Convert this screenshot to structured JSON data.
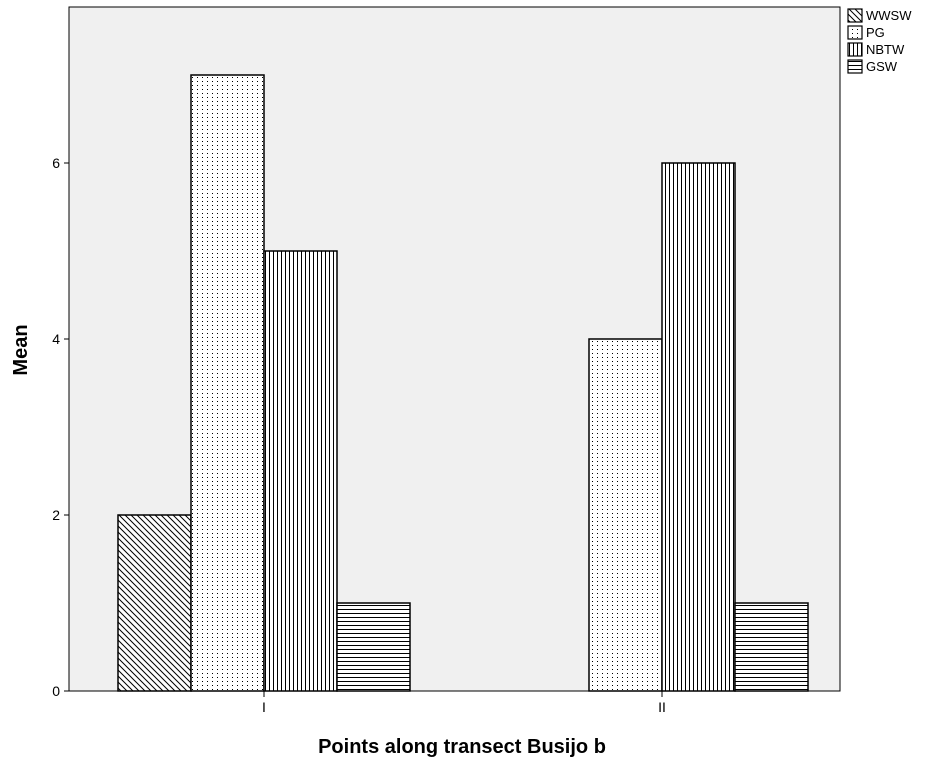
{
  "chart_data": {
    "type": "bar",
    "title": "",
    "xlabel": "Points along transect Busijo b",
    "ylabel": "Mean",
    "categories": [
      "I",
      "II"
    ],
    "series": [
      {
        "name": "WWSW",
        "values": [
          2,
          null
        ],
        "pattern": "diagonal"
      },
      {
        "name": "PG",
        "values": [
          7,
          4
        ],
        "pattern": "dots"
      },
      {
        "name": "NBTW",
        "values": [
          5,
          6
        ],
        "pattern": "vertical"
      },
      {
        "name": "GSW",
        "values": [
          1,
          1
        ],
        "pattern": "horizontal"
      }
    ],
    "yticks": [
      0,
      2,
      4,
      6
    ],
    "ylim": [
      0,
      7.8
    ],
    "grid": false,
    "legend_position": "top-right",
    "colors": {
      "plot_background": "#f0f0f0",
      "bar_fill": "#ffffff",
      "stroke": "#000000"
    }
  }
}
